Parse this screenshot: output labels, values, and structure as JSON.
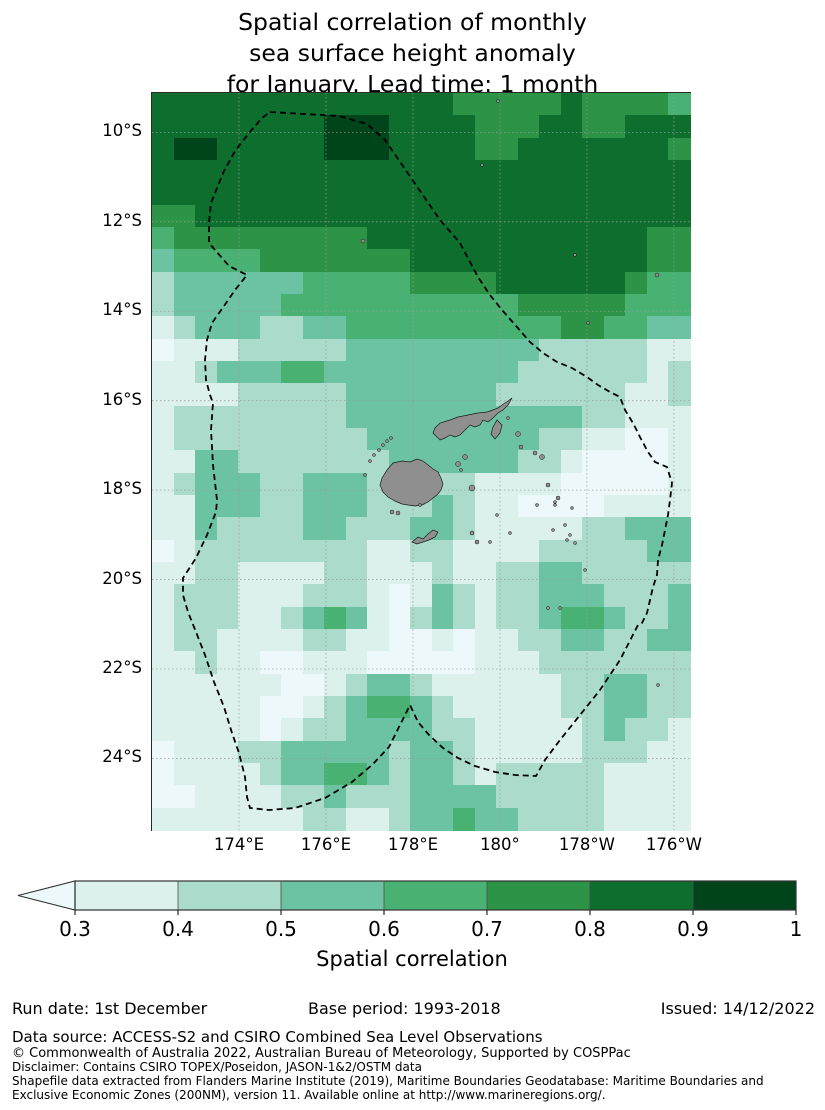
{
  "title": {
    "line1": "Spatial correlation of monthly",
    "line2": "sea surface height anomaly",
    "line3": "for January. Lead time: 1 month"
  },
  "map": {
    "y_ticks": [
      {
        "label": "10°S",
        "lat": 10
      },
      {
        "label": "12°S",
        "lat": 12
      },
      {
        "label": "14°S",
        "lat": 14
      },
      {
        "label": "16°S",
        "lat": 16
      },
      {
        "label": "18°S",
        "lat": 18
      },
      {
        "label": "20°S",
        "lat": 20
      },
      {
        "label": "22°S",
        "lat": 22
      },
      {
        "label": "24°S",
        "lat": 24
      }
    ],
    "x_ticks": [
      {
        "label": "174°E",
        "lon": 174
      },
      {
        "label": "176°E",
        "lon": 176
      },
      {
        "label": "178°E",
        "lon": 178
      },
      {
        "label": "180°",
        "lon": 180
      },
      {
        "label": "178°W",
        "lon": 182
      },
      {
        "label": "176°W",
        "lon": 184
      }
    ],
    "land_color": "#8f8f8f",
    "land_edge_color": "#1a1a1a",
    "eez_line_color": "#000000",
    "gridline_color": "#9a9a9a",
    "eez_points": [
      [
        118,
        19
      ],
      [
        187,
        23
      ],
      [
        215,
        31
      ],
      [
        233,
        47
      ],
      [
        288,
        127
      ],
      [
        308,
        150
      ],
      [
        326,
        184
      ],
      [
        338,
        202
      ],
      [
        350,
        217
      ],
      [
        365,
        234
      ],
      [
        378,
        249
      ],
      [
        391,
        260
      ],
      [
        405,
        269
      ],
      [
        420,
        275
      ],
      [
        435,
        284
      ],
      [
        446,
        292
      ],
      [
        458,
        299
      ],
      [
        468,
        304
      ],
      [
        473,
        317
      ],
      [
        481,
        330
      ],
      [
        488,
        344
      ],
      [
        496,
        359
      ],
      [
        503,
        369
      ],
      [
        515,
        374
      ],
      [
        520,
        390
      ],
      [
        518,
        407
      ],
      [
        516,
        422
      ],
      [
        513,
        437
      ],
      [
        510,
        452
      ],
      [
        506,
        467
      ],
      [
        505,
        482
      ],
      [
        501,
        494
      ],
      [
        498,
        507
      ],
      [
        495,
        520
      ],
      [
        490,
        530
      ],
      [
        486,
        532
      ],
      [
        468,
        567
      ],
      [
        448,
        597
      ],
      [
        428,
        622
      ],
      [
        408,
        647
      ],
      [
        393,
        667
      ],
      [
        384,
        683
      ],
      [
        363,
        682
      ],
      [
        343,
        679
      ],
      [
        323,
        673
      ],
      [
        306,
        665
      ],
      [
        291,
        655
      ],
      [
        277,
        642
      ],
      [
        266,
        629
      ],
      [
        258,
        612
      ],
      [
        248,
        632
      ],
      [
        237,
        654
      ],
      [
        220,
        672
      ],
      [
        200,
        689
      ],
      [
        173,
        705
      ],
      [
        143,
        715
      ],
      [
        117,
        717
      ],
      [
        98,
        715
      ],
      [
        95,
        704
      ],
      [
        93,
        684
      ],
      [
        87,
        660
      ],
      [
        80,
        640
      ],
      [
        72,
        614
      ],
      [
        62,
        589
      ],
      [
        53,
        562
      ],
      [
        44,
        539
      ],
      [
        36,
        519
      ],
      [
        31,
        502
      ],
      [
        31,
        485
      ],
      [
        44,
        465
      ],
      [
        55,
        442
      ],
      [
        64,
        419
      ],
      [
        65,
        407
      ],
      [
        61,
        372
      ],
      [
        59,
        337
      ],
      [
        61,
        310
      ],
      [
        58,
        302
      ],
      [
        54,
        287
      ],
      [
        53,
        267
      ],
      [
        55,
        247
      ],
      [
        60,
        230
      ],
      [
        72,
        213
      ],
      [
        83,
        197
      ],
      [
        95,
        182
      ],
      [
        77,
        173
      ],
      [
        57,
        150
      ],
      [
        57,
        130
      ],
      [
        59,
        110
      ],
      [
        63,
        100
      ],
      [
        72,
        78
      ],
      [
        83,
        58
      ],
      [
        97,
        40
      ],
      [
        110,
        25
      ]
    ],
    "islands": {
      "viti_levu": [
        [
          228,
          392
        ],
        [
          230,
          385
        ],
        [
          235,
          377
        ],
        [
          241,
          370
        ],
        [
          250,
          368
        ],
        [
          258,
          369
        ],
        [
          265,
          366
        ],
        [
          271,
          368
        ],
        [
          276,
          372
        ],
        [
          281,
          376
        ],
        [
          286,
          379
        ],
        [
          289,
          385
        ],
        [
          291,
          391
        ],
        [
          289,
          397
        ],
        [
          286,
          401
        ],
        [
          281,
          405
        ],
        [
          276,
          409
        ],
        [
          270,
          412
        ],
        [
          263,
          413
        ],
        [
          256,
          412
        ],
        [
          250,
          411
        ],
        [
          243,
          408
        ],
        [
          236,
          404
        ],
        [
          231,
          399
        ]
      ],
      "vanua_levu": [
        [
          281,
          340
        ],
        [
          283,
          335
        ],
        [
          288,
          330
        ],
        [
          298,
          327
        ],
        [
          306,
          324
        ],
        [
          316,
          322
        ],
        [
          326,
          320
        ],
        [
          335,
          319
        ],
        [
          341,
          317
        ],
        [
          346,
          315
        ],
        [
          350,
          312
        ],
        [
          356,
          308
        ],
        [
          360,
          305
        ],
        [
          356,
          312
        ],
        [
          351,
          317
        ],
        [
          346,
          320
        ],
        [
          341,
          325
        ],
        [
          336,
          329
        ],
        [
          331,
          327
        ],
        [
          328,
          332
        ],
        [
          323,
          334
        ],
        [
          318,
          332
        ],
        [
          313,
          337
        ],
        [
          308,
          342
        ],
        [
          303,
          344
        ],
        [
          298,
          342
        ],
        [
          293,
          345
        ],
        [
          288,
          347
        ],
        [
          285,
          344
        ]
      ],
      "taveuni": [
        [
          345,
          327
        ],
        [
          350,
          332
        ],
        [
          348,
          340
        ],
        [
          343,
          346
        ],
        [
          339,
          341
        ],
        [
          341,
          334
        ]
      ],
      "kadavu": [
        [
          260,
          449
        ],
        [
          266,
          444
        ],
        [
          271,
          446
        ],
        [
          276,
          441
        ],
        [
          281,
          437
        ],
        [
          286,
          439
        ],
        [
          283,
          444
        ],
        [
          277,
          447
        ],
        [
          271,
          449
        ],
        [
          265,
          451
        ]
      ]
    },
    "islets": [
      [
        222,
        362,
        1.5
      ],
      [
        227,
        357,
        1.5
      ],
      [
        231,
        352,
        1.5
      ],
      [
        235,
        348,
        1.5
      ],
      [
        239,
        345,
        1.5
      ],
      [
        218,
        368,
        1.5
      ],
      [
        213,
        382,
        1.5
      ],
      [
        240,
        419,
        2
      ],
      [
        246,
        420,
        2
      ],
      [
        268,
        412,
        1.5
      ],
      [
        306,
        371,
        2.5
      ],
      [
        313,
        364,
        2.5
      ],
      [
        320,
        395,
        3
      ],
      [
        309,
        377,
        1.5
      ],
      [
        320,
        440,
        2
      ],
      [
        325,
        449,
        2
      ],
      [
        356,
        325,
        1.5
      ],
      [
        366,
        341,
        2.5
      ],
      [
        369,
        354,
        2
      ],
      [
        383,
        360,
        2
      ],
      [
        390,
        364,
        2.5
      ],
      [
        396,
        392,
        2
      ],
      [
        406,
        405,
        2
      ],
      [
        403,
        409,
        1.5
      ],
      [
        385,
        412,
        1.5
      ],
      [
        403,
        412,
        1.5
      ],
      [
        420,
        415,
        1.5
      ],
      [
        413,
        432,
        1.5
      ],
      [
        418,
        442,
        1.5
      ],
      [
        415,
        447,
        1.5
      ],
      [
        423,
        450,
        1.5
      ],
      [
        401,
        437,
        1.5
      ],
      [
        433,
        477,
        1.5
      ],
      [
        408,
        515,
        1.5
      ],
      [
        396,
        515,
        1.5
      ],
      [
        345,
        422,
        1.5
      ],
      [
        338,
        449,
        1.5
      ],
      [
        358,
        440,
        1.5
      ],
      [
        346,
        8,
        1.5
      ],
      [
        330,
        72,
        1.5
      ],
      [
        211,
        148,
        2
      ],
      [
        423,
        162,
        1.5
      ],
      [
        505,
        182,
        2
      ],
      [
        436,
        230,
        1.5
      ],
      [
        506,
        592,
        1.5
      ]
    ]
  },
  "colorbar": {
    "ticks": [
      "0.3",
      "0.4",
      "0.5",
      "0.6",
      "0.7",
      "0.8",
      "0.9",
      "1"
    ],
    "label": "Spatial correlation",
    "outline_color": "#333333"
  },
  "chart_data": {
    "type": "heatmap",
    "title": "Spatial correlation of monthly sea surface height anomaly for January. Lead time: 1 month",
    "colorbar_label": "Spatial correlation",
    "colorbar_ticks": [
      0.3,
      0.4,
      0.5,
      0.6,
      0.7,
      0.8,
      0.9,
      1.0
    ],
    "colorbar_extend": "min",
    "bins": [
      "<0.3",
      "0.3-0.4",
      "0.4-0.5",
      "0.5-0.6",
      "0.6-0.7",
      "0.7-0.8",
      "0.8-0.9",
      "0.9-1.0"
    ],
    "palette": [
      "#edf8fa",
      "#ddf1ec",
      "#abdbca",
      "#6cc3a4",
      "#49b273",
      "#2d9346",
      "#0e6e2e",
      "#00441c"
    ],
    "lon_range": [
      172.0,
      184.37
    ],
    "lat_range": [
      9.12,
      25.6
    ],
    "lon_gridlines": [
      174,
      176,
      178,
      180,
      182,
      184
    ],
    "lat_gridlines": [
      10,
      12,
      14,
      16,
      18,
      20,
      22,
      24
    ],
    "ncols": 25,
    "nrows": 33,
    "cell_deg": 0.5,
    "rows": [
      "6666666666666655555655554",
      "6666666677766665556655666",
      "6776666677766665566666665",
      "6666666666666666666666666",
      "6666666666666666666666666",
      "5566666666666666666666666",
      "4555555555666666666666655",
      "3444455555556666666666655",
      "2333333444445555666666544",
      "2333334444444444455555444",
      "1233322334444444444554433",
      "0111222223333333332222211",
      "1123334433333333322222212",
      "1111222223333333222222112",
      "1222222223333333333322111",
      "1222222222333333332211001",
      "1133222222233333322100001",
      "1233322333222221111000001",
      "1133322333222321100001111",
      "1132222332223321111122333",
      "0122222222112211112222233",
      "1122111122111211223322222",
      "1222111222101321223332223",
      "1222112343102321223443223",
      "1221111221100101122332233",
      "1121100111000001112222222",
      "1111110012332111111223322",
      "1111100123443211111223322",
      "1111101223333221111123221",
      "0111223333323321111122211",
      "0111123344323321222221111",
      "0011112232223333222221111",
      "1111111221123343322221111"
    ]
  },
  "footer": {
    "run_date": "Run date: 1st December",
    "base_period": "Base period: 1993-2018",
    "issued": "Issued: 14/12/2022",
    "data_source": "Data source: ACCESS-S2 and CSIRO Combined Sea Level Observations",
    "copyright": "© Commonwealth of Australia 2022, Australian Bureau of Meteorology, Supported by COSPPac",
    "disclaimer": "Disclaimer: Contains CSIRO TOPEX/Poseidon, JASON-1&2/OSTM data",
    "shapefile1": "Shapefile data extracted from Flanders Marine Institute (2019), Maritime Boundaries Geodatabase: Maritime Boundaries and",
    "shapefile2": "Exclusive Economic Zones (200NM), version 11. Available online at http://www.marineregions.org/."
  }
}
